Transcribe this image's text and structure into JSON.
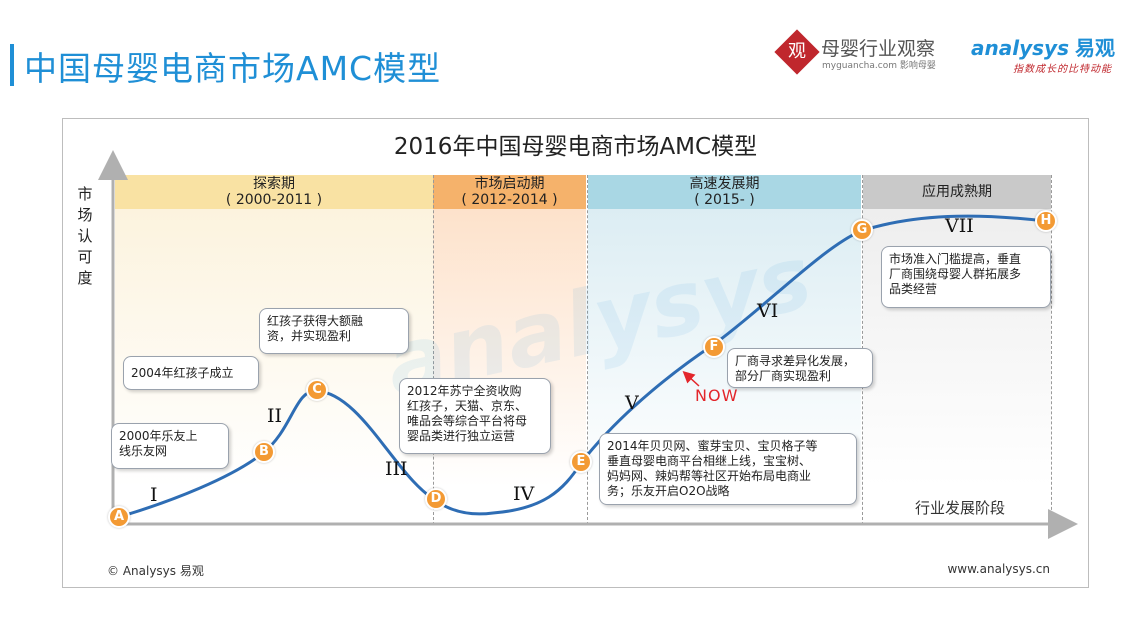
{
  "page": {
    "title": "中国母婴电商市场AMC模型"
  },
  "logos": {
    "seal_char": "观",
    "muying_name": "母婴行业观察",
    "muying_sub": "myguancha.com 影响母婴",
    "analysys_name": "analysys",
    "analysys_cn": "易观",
    "analysys_slogan": "指数成长的比特动能"
  },
  "chart": {
    "title": "2016年中国母婴电商市场AMC模型",
    "y_label": "市场认可度",
    "x_label": "行业发展阶段",
    "watermark": "analysys",
    "footer_left": "© Analysys 易观",
    "footer_right": "www.analysys.cn",
    "now_label": "NOW"
  },
  "phases": [
    {
      "name": "探索期",
      "period": "( 2000-2011 )",
      "head_color": "#f9e2a3",
      "body_color": "#fcf3de"
    },
    {
      "name": "市场启动期",
      "period": "( 2012-2014 )",
      "head_color": "#f5b26b",
      "body_color": "#fde7d6"
    },
    {
      "name": "高速发展期",
      "period": "( 2015- )",
      "head_color": "#a9d7e4",
      "body_color": "#e3f1f5"
    },
    {
      "name": "应用成熟期",
      "period": "",
      "head_color": "#c9c9c9",
      "body_color": "#f3f3f3"
    }
  ],
  "points": [
    "A",
    "B",
    "C",
    "D",
    "E",
    "F",
    "G",
    "H"
  ],
  "stages": [
    "I",
    "II",
    "III",
    "IV",
    "V",
    "VI",
    "VII"
  ],
  "callouts": {
    "a": "2000年乐友上\n线乐友网",
    "b": "2004年红孩子成立",
    "c": "红孩子获得大额融\n资，并实现盈利",
    "d": "2012年苏宁全资收购\n红孩子，天猫、京东、\n唯品会等综合平台将母\n婴品类进行独立运营",
    "e": "2014年贝贝网、蜜芽宝贝、宝贝格子等\n垂直母婴电商平台相继上线，宝宝树、\n妈妈网、辣妈帮等社区开始布局电商业\n务；乐友开启O2O战略",
    "f": "厂商寻求差异化发展，\n部分厂商实现盈利",
    "g": "市场准入门槛提高，垂直\n厂商围绕母婴人群拓展多\n品类经营"
  },
  "colors": {
    "accent": "#1f8fd6",
    "curve": "#2e6db4",
    "point": "#f39a34",
    "now": "#e3262b"
  }
}
